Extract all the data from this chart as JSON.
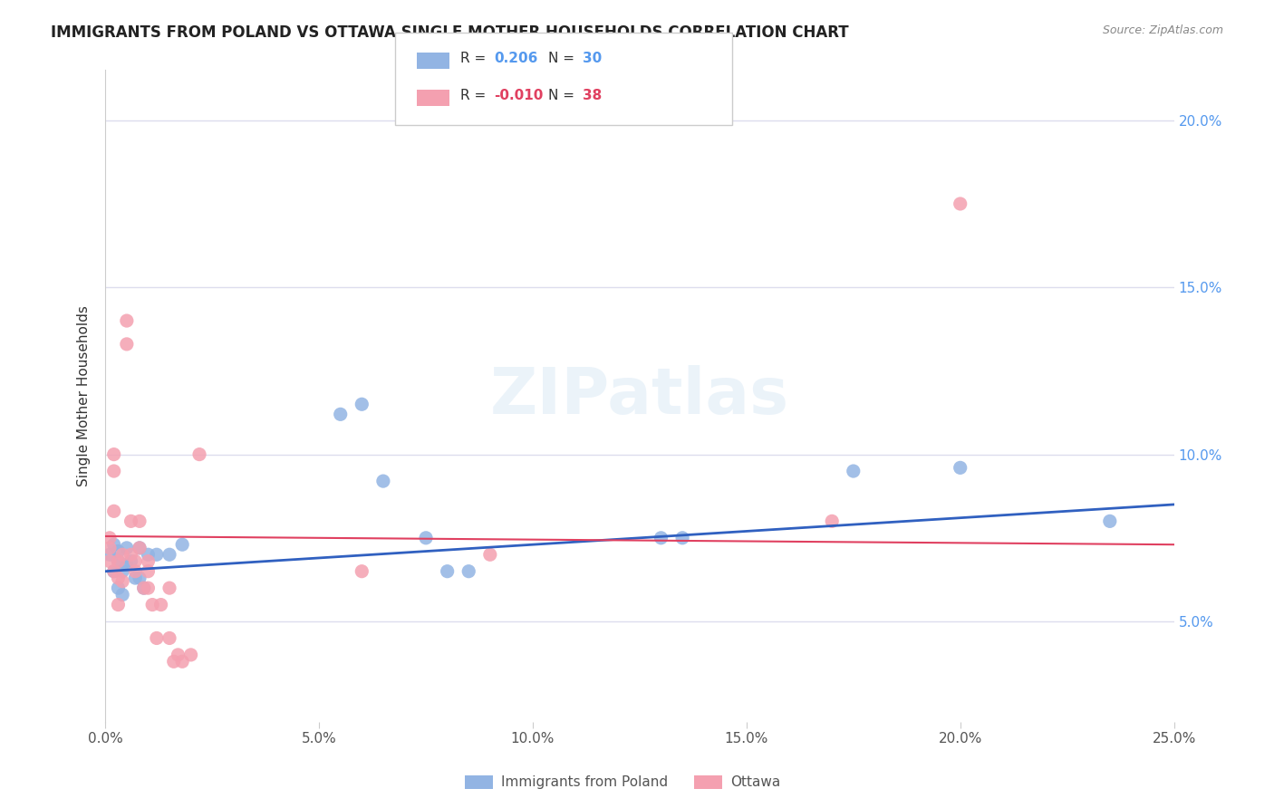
{
  "title": "IMMIGRANTS FROM POLAND VS OTTAWA SINGLE MOTHER HOUSEHOLDS CORRELATION CHART",
  "source": "Source: ZipAtlas.com",
  "ylabel": "Single Mother Households",
  "legend_blue_r": "0.206",
  "legend_blue_n": "30",
  "legend_pink_r": "-0.010",
  "legend_pink_n": "38",
  "legend_blue_label": "Immigrants from Poland",
  "legend_pink_label": "Ottawa",
  "blue_color": "#92b4e3",
  "pink_color": "#f4a0b0",
  "line_blue": "#3060c0",
  "line_pink": "#e04060",
  "r_n_blue_color": "#5599ee",
  "r_n_pink_color": "#e04060",
  "xlim": [
    0.0,
    0.25
  ],
  "ylim": [
    0.02,
    0.215
  ],
  "blue_points_x": [
    0.001,
    0.002,
    0.002,
    0.003,
    0.003,
    0.003,
    0.004,
    0.004,
    0.005,
    0.005,
    0.006,
    0.007,
    0.008,
    0.008,
    0.009,
    0.01,
    0.012,
    0.015,
    0.018,
    0.055,
    0.06,
    0.065,
    0.075,
    0.08,
    0.085,
    0.13,
    0.135,
    0.175,
    0.2,
    0.235
  ],
  "blue_points_y": [
    0.07,
    0.073,
    0.065,
    0.071,
    0.068,
    0.06,
    0.065,
    0.058,
    0.072,
    0.067,
    0.068,
    0.063,
    0.072,
    0.063,
    0.06,
    0.07,
    0.07,
    0.07,
    0.073,
    0.112,
    0.115,
    0.092,
    0.075,
    0.065,
    0.065,
    0.075,
    0.075,
    0.095,
    0.096,
    0.08
  ],
  "pink_points_x": [
    0.001,
    0.001,
    0.001,
    0.002,
    0.002,
    0.002,
    0.002,
    0.003,
    0.003,
    0.003,
    0.004,
    0.004,
    0.005,
    0.005,
    0.006,
    0.006,
    0.007,
    0.007,
    0.008,
    0.008,
    0.009,
    0.01,
    0.01,
    0.01,
    0.011,
    0.012,
    0.013,
    0.015,
    0.015,
    0.016,
    0.017,
    0.018,
    0.02,
    0.022,
    0.06,
    0.09,
    0.17,
    0.2
  ],
  "pink_points_y": [
    0.075,
    0.072,
    0.068,
    0.1,
    0.095,
    0.083,
    0.065,
    0.068,
    0.063,
    0.055,
    0.062,
    0.07,
    0.14,
    0.133,
    0.07,
    0.08,
    0.068,
    0.065,
    0.08,
    0.072,
    0.06,
    0.068,
    0.065,
    0.06,
    0.055,
    0.045,
    0.055,
    0.06,
    0.045,
    0.038,
    0.04,
    0.038,
    0.04,
    0.1,
    0.065,
    0.07,
    0.08,
    0.175
  ],
  "blue_line_x": [
    0.0,
    0.25
  ],
  "blue_line_y": [
    0.065,
    0.085
  ],
  "pink_line_x": [
    0.0,
    0.25
  ],
  "pink_line_y": [
    0.0755,
    0.073
  ],
  "watermark": "ZIPatlas",
  "background_color": "#ffffff",
  "grid_color": "#ddddee",
  "marker_size": 120,
  "ytick_vals": [
    0.05,
    0.1,
    0.15,
    0.2
  ],
  "ytick_labels": [
    "5.0%",
    "10.0%",
    "15.0%",
    "20.0%"
  ]
}
